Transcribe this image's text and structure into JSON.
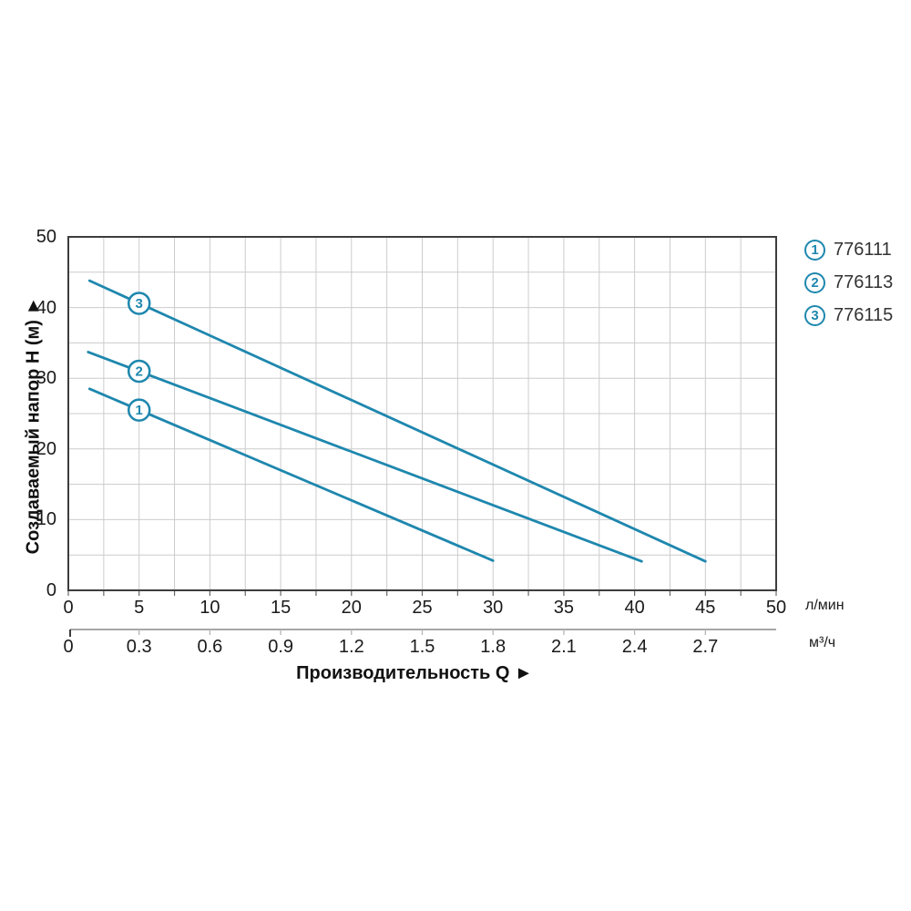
{
  "chart_data": {
    "type": "line",
    "x_axis": {
      "title": "Производительность Q ►",
      "primary_unit": "л/мин",
      "primary_ticks": [
        "0",
        "5",
        "10",
        "15",
        "20",
        "25",
        "30",
        "35",
        "40",
        "45",
        "50"
      ],
      "secondary_unit": "м³/ч",
      "secondary_ticks": [
        "0",
        "0.3",
        "0.6",
        "0.9",
        "1.2",
        "1.5",
        "1.8",
        "2.1",
        "2.4",
        "2.7"
      ],
      "min": 0,
      "max": 50,
      "minor_grid_step": 2.5
    },
    "y_axis": {
      "title": "Создаваемый напор H (м) ►",
      "ticks": [
        "0",
        "10",
        "20",
        "30",
        "40",
        "50"
      ],
      "min": 0,
      "max": 50,
      "grid_step": 5
    },
    "series": [
      {
        "marker": "1",
        "code": "776111",
        "points": [
          [
            1.5,
            28.5
          ],
          [
            30,
            4.2
          ]
        ],
        "marker_at": [
          5,
          25.5
        ]
      },
      {
        "marker": "2",
        "code": "776113",
        "points": [
          [
            1.4,
            33.7
          ],
          [
            40.5,
            4.1
          ]
        ],
        "marker_at": [
          5,
          31.0
        ]
      },
      {
        "marker": "3",
        "code": "776115",
        "points": [
          [
            1.5,
            43.8
          ],
          [
            45,
            4.1
          ]
        ],
        "marker_at": [
          5,
          40.6
        ]
      }
    ],
    "legend_position": "top-right",
    "grid": true,
    "colors": {
      "line": "#1e87ae",
      "grid": "#cccccc",
      "border": "#3d3d3d",
      "ruler": "#8a8a8a",
      "ruler_tick": "#b5b5b5",
      "axis_tick": "#666666",
      "text": "#1a1a1a",
      "legend_text": "#333333"
    }
  }
}
